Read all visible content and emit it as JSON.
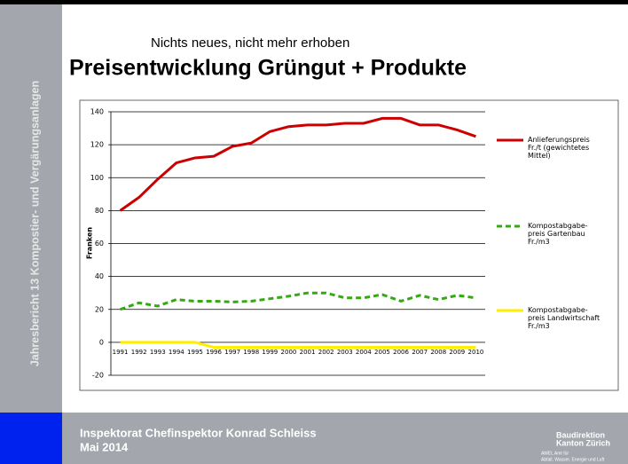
{
  "slide": {
    "sidebar": "Jahresbericht 13 Kompostier- und Vergärungsanlagen",
    "subtitle": "Nichts neues, nicht mehr erhoben",
    "title": "Preisentwicklung Grüngut + Produkte",
    "footer": [
      "Inspektorat Chefinspektor Konrad Schleiss",
      "Mai 2014"
    ],
    "logo": [
      "Baudirektion",
      "Kanton Zürich",
      "AWEL Amt für",
      "Abfall, Wasser, Energie und Luft"
    ]
  },
  "chart_data": {
    "type": "line",
    "ylabel": "Franken",
    "categories": [
      "1991",
      "1992",
      "1993",
      "1994",
      "1995",
      "1996",
      "1997",
      "1998",
      "1999",
      "2000",
      "2001",
      "2002",
      "2003",
      "2004",
      "2005",
      "2006",
      "2007",
      "2008",
      "2009",
      "2010"
    ],
    "series": [
      {
        "name": "Anlieferungspreis\nFr./t (gewichtetes\nMittel)",
        "color": "#cc0000",
        "dash": false,
        "values": [
          80,
          88,
          99,
          109,
          112,
          113,
          119,
          121,
          128,
          131,
          132,
          132,
          133,
          133,
          136,
          136,
          132,
          132,
          129,
          125
        ]
      },
      {
        "name": "Kompostabgabe-\npreis Gartenbau\nFr./m3",
        "color": "#33aa11",
        "dash": true,
        "values": [
          20,
          24,
          22,
          26,
          25,
          25,
          24.5,
          25,
          26.5,
          28,
          30,
          30,
          27,
          27,
          29,
          25,
          28.5,
          26,
          28.5,
          27
        ]
      },
      {
        "name": "Kompostabgabe-\npreis Landwirtschaft\nFr./m3",
        "color": "#ffee00",
        "dash": false,
        "values": [
          0,
          0,
          0,
          0,
          0,
          -3,
          -3,
          -3,
          -3,
          -3,
          -3,
          -3,
          -3,
          -3,
          -3,
          -3,
          -3,
          -3,
          -3,
          -3
        ]
      }
    ],
    "ylim": [
      -20,
      140
    ],
    "yticks": [
      -20,
      0,
      20,
      40,
      60,
      80,
      100,
      120,
      140
    ],
    "grid": true
  }
}
